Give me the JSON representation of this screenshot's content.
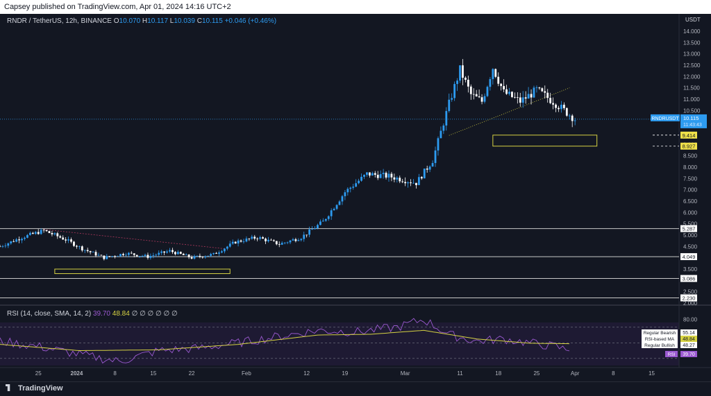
{
  "header": {
    "published": "Capsey published on TradingView.com, Apr 01, 2024 14:16 UTC+2"
  },
  "legend": {
    "symbol": "RNDR / TetherUS, 12h, BINANCE",
    "o_label": "O",
    "o": "10.070",
    "h_label": "H",
    "h": "10.117",
    "l_label": "L",
    "l": "10.039",
    "c_label": "C",
    "c": "10.115",
    "change": "+0.046 (+0.46%)"
  },
  "currency": "USDT",
  "price_tag": {
    "symbol": "RNDRUSDT",
    "price": "10.115",
    "countdown": "11:43:43"
  },
  "level_tags": [
    "9.414",
    "8.927",
    "5.287",
    "4.049",
    "3.086",
    "2.230"
  ],
  "rsi_legend": {
    "title": "RSI (14, close, SMA, 14, 2)",
    "rsi": "39.70",
    "ma": "48.84",
    "placeholders": "∅ ∅ ∅ ∅ ∅ ∅"
  },
  "rsi_tags": [
    {
      "label": "Regular Bearish",
      "value": "55.14"
    },
    {
      "label": "RSI-based MA",
      "value": "48.84"
    },
    {
      "label": "Regular Bullish",
      "value": "48.27"
    },
    {
      "label": "RSI",
      "value": "39.70"
    }
  ],
  "footer": {
    "brand": "TradingView"
  },
  "colors": {
    "up": "#2d9bf0",
    "down": "#ffffff",
    "rsi": "#9b59d0",
    "rsi_ma": "#d6d243",
    "zone": "#d6d243"
  },
  "chart_data": {
    "type": "candlestick",
    "price_axis": {
      "ticks": [
        "14.000",
        "13.500",
        "13.000",
        "12.500",
        "12.000",
        "11.500",
        "11.000",
        "10.500",
        "9.000",
        "8.500",
        "8.000",
        "7.500",
        "7.000",
        "6.500",
        "6.000",
        "5.500",
        "5.000",
        "4.500",
        "3.500",
        "2.500",
        "2.000"
      ],
      "range": [
        2.0,
        14.2
      ]
    },
    "time_axis": {
      "ticks": [
        "25",
        "2024",
        "8",
        "15",
        "22",
        "Feb",
        "12",
        "19",
        "Mar",
        "11",
        "18",
        "25",
        "Apr",
        "8",
        "15"
      ]
    },
    "close_path": [
      [
        "2023-12-18",
        4.5
      ],
      [
        "2023-12-22",
        4.9
      ],
      [
        "2023-12-26",
        5.2
      ],
      [
        "2023-12-30",
        4.8
      ],
      [
        "2024-01-02",
        4.4
      ],
      [
        "2024-01-06",
        4.0
      ],
      [
        "2024-01-10",
        4.2
      ],
      [
        "2024-01-14",
        4.05
      ],
      [
        "2024-01-18",
        4.3
      ],
      [
        "2024-01-22",
        4.0
      ],
      [
        "2024-01-26",
        4.15
      ],
      [
        "2024-01-30",
        4.7
      ],
      [
        "2024-02-03",
        4.9
      ],
      [
        "2024-02-07",
        4.6
      ],
      [
        "2024-02-11",
        4.9
      ],
      [
        "2024-02-15",
        5.6
      ],
      [
        "2024-02-19",
        6.9
      ],
      [
        "2024-02-23",
        7.7
      ],
      [
        "2024-02-27",
        7.6
      ],
      [
        "2024-03-03",
        7.3
      ],
      [
        "2024-03-06",
        8.3
      ],
      [
        "2024-03-09",
        10.8
      ],
      [
        "2024-03-11",
        12.3
      ],
      [
        "2024-03-13",
        11.2
      ],
      [
        "2024-03-15",
        10.9
      ],
      [
        "2024-03-17",
        12.4
      ],
      [
        "2024-03-19",
        11.3
      ],
      [
        "2024-03-22",
        10.9
      ],
      [
        "2024-03-25",
        11.4
      ],
      [
        "2024-03-28",
        10.9
      ],
      [
        "2024-04-01",
        10.115
      ]
    ],
    "horizontal_levels": [
      5.287,
      4.049,
      3.086,
      2.23
    ],
    "zones": [
      {
        "from": "2024-03-17",
        "to": "2024-04-05",
        "high": 9.414,
        "low": 8.927
      },
      {
        "from": "2023-12-28",
        "to": "2024-01-29",
        "high": 3.5,
        "low": 3.3
      }
    ],
    "rsi": {
      "axis_ticks": [
        "80.00"
      ],
      "levels": [
        70,
        50,
        30
      ],
      "series_rsi": [
        [
          0,
          52
        ],
        [
          6,
          45
        ],
        [
          12,
          35
        ],
        [
          18,
          26
        ],
        [
          24,
          40
        ],
        [
          30,
          43
        ],
        [
          36,
          50
        ],
        [
          42,
          58
        ],
        [
          48,
          66
        ],
        [
          54,
          64
        ],
        [
          60,
          70
        ],
        [
          62,
          75
        ],
        [
          64,
          80
        ],
        [
          68,
          60
        ],
        [
          72,
          52
        ],
        [
          76,
          55
        ],
        [
          80,
          50
        ],
        [
          84,
          45
        ],
        [
          86,
          39.7
        ]
      ],
      "series_ma": [
        [
          0,
          48
        ],
        [
          12,
          40
        ],
        [
          24,
          41
        ],
        [
          36,
          48
        ],
        [
          48,
          60
        ],
        [
          56,
          61
        ],
        [
          64,
          66
        ],
        [
          72,
          55
        ],
        [
          80,
          49.5
        ],
        [
          86,
          48.84
        ]
      ]
    }
  }
}
